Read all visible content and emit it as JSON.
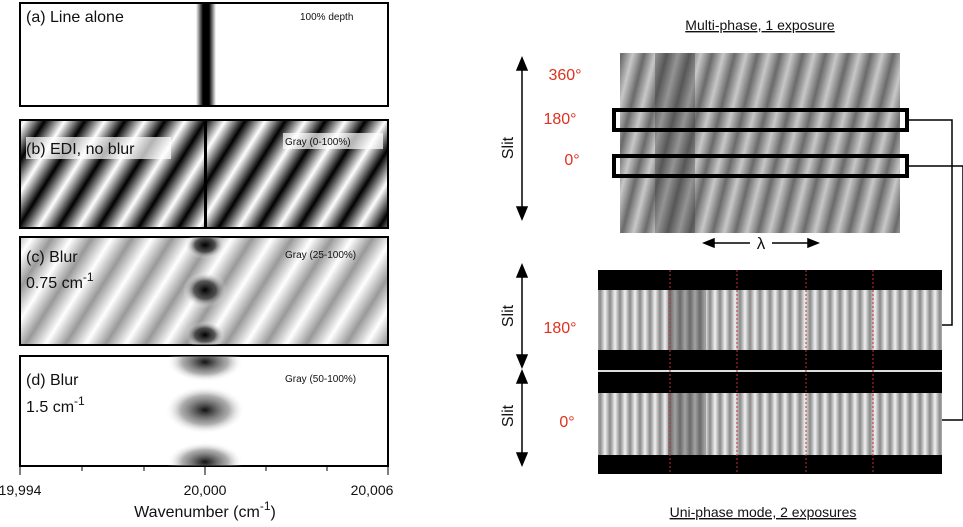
{
  "panels": [
    {
      "label": "(a) Line alone",
      "note": "100% depth"
    },
    {
      "label": "(b) EDI, no blur",
      "note": "Gray (0-100%)"
    },
    {
      "label": "(c) Blur",
      "sublabel": "0.75 cm",
      "sup": "-1",
      "note": "Gray (25-100%)"
    },
    {
      "label": "(d) Blur",
      "sublabel": "1.5 cm",
      "sup": "-1",
      "note": "Gray (50-100%)"
    }
  ],
  "x_axis": {
    "ticks": [
      "19,994",
      "20,000",
      "20,006"
    ],
    "label": "Wavenumber (cm",
    "label_sup": "-1",
    "label_end": ")"
  },
  "multi_phase": {
    "title": "Multi-phase, 1 exposure",
    "phases": [
      "360°",
      "180°",
      "0°"
    ],
    "slit": "Slit",
    "lambda": "λ"
  },
  "uni_phase": {
    "title": "Uni-phase mode, 2 exposures",
    "phases": [
      "180°",
      "0°"
    ],
    "slit": "Slit"
  }
}
